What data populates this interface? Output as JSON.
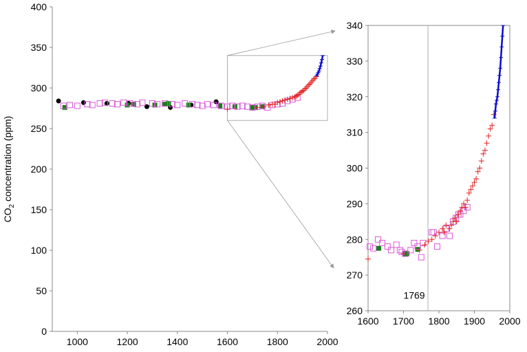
{
  "chart_data": [
    {
      "type": "scatter",
      "panel": "main",
      "ylabel_main": "CO",
      "ylabel_sub": "2",
      "ylabel_rest": " concentration (ppm)",
      "xlim": [
        900,
        2000
      ],
      "ylim": [
        0,
        400
      ],
      "xticks": [
        1000,
        1200,
        1400,
        1600,
        1800,
        2000
      ],
      "yticks": [
        0,
        50,
        100,
        150,
        200,
        250,
        300,
        350,
        400
      ],
      "grid": false,
      "zoom_box": {
        "x": [
          1600,
          2000
        ],
        "y": [
          260,
          340
        ]
      },
      "series": [
        {
          "marker": "circle",
          "color": "#000000",
          "x": [
            925,
            1025,
            1118,
            1205,
            1278,
            1372,
            1455,
            1555
          ],
          "y": [
            284,
            282,
            281,
            281,
            277,
            276,
            279,
            283
          ]
        },
        {
          "marker": "filled-square",
          "color": "#138013",
          "x": [
            950,
            1200,
            1225,
            1310,
            1350,
            1365,
            1445,
            1570,
            1630,
            1700,
            1710,
            1740
          ],
          "y": [
            276,
            279,
            280,
            279,
            280,
            281,
            279,
            278,
            277,
            276,
            276,
            277
          ]
        },
        {
          "marker": "open-square",
          "color": "#d957d9",
          "x": [
            945,
            970,
            1000,
            1040,
            1060,
            1090,
            1110,
            1140,
            1160,
            1185,
            1210,
            1240,
            1260,
            1300,
            1320,
            1350,
            1380,
            1400,
            1430,
            1460,
            1480,
            1500,
            1520,
            1545,
            1575,
            1600,
            1620,
            1640,
            1660,
            1680,
            1700,
            1720,
            1740,
            1760,
            1780,
            1800,
            1820,
            1840,
            1860,
            1880
          ],
          "y": [
            278,
            279,
            278,
            280,
            279,
            281,
            282,
            281,
            280,
            282,
            281,
            280,
            282,
            281,
            280,
            281,
            280,
            279,
            281,
            280,
            279,
            278,
            280,
            279,
            278,
            277,
            278,
            277,
            278,
            277,
            276,
            277,
            278,
            276,
            279,
            280,
            281,
            284,
            286,
            288
          ]
        },
        {
          "marker": "plus",
          "color": "#e02020",
          "x": [
            1600,
            1720,
            1745,
            1765,
            1780,
            1790,
            1800,
            1810,
            1820,
            1830,
            1840,
            1850,
            1860,
            1870,
            1875,
            1880,
            1885,
            1890,
            1895,
            1900,
            1905,
            1910,
            1915,
            1920,
            1925,
            1930,
            1935,
            1940,
            1945,
            1950,
            1955
          ],
          "y": [
            274,
            276,
            277,
            279,
            280,
            280,
            282,
            283,
            284,
            285,
            286,
            287,
            288,
            289,
            290,
            291,
            292,
            294,
            295,
            296,
            297,
            299,
            300,
            302,
            304,
            305,
            307,
            309,
            311,
            312,
            314
          ]
        },
        {
          "marker": "line",
          "color": "#0a0ad0",
          "x": [
            1957,
            1960,
            1963,
            1966,
            1969,
            1972,
            1975,
            1978,
            1981
          ],
          "y": [
            315,
            317,
            319,
            321,
            324,
            327,
            331,
            335,
            340
          ]
        }
      ]
    },
    {
      "type": "scatter",
      "panel": "inset",
      "xlim": [
        1600,
        2000
      ],
      "ylim": [
        260,
        340
      ],
      "xticks": [
        1600,
        1700,
        1800,
        1900,
        2000
      ],
      "yticks": [
        260,
        270,
        280,
        290,
        300,
        310,
        320,
        330,
        340
      ],
      "vline_x": 1769,
      "annotation": "1769",
      "grid": false,
      "series": [
        {
          "marker": "filled-square",
          "color": "#138013",
          "x": [
            1630,
            1705,
            1710,
            1740
          ],
          "y": [
            277.5,
            276,
            276,
            277.2
          ]
        },
        {
          "marker": "open-square",
          "color": "#d957d9",
          "x": [
            1605,
            1615,
            1628,
            1640,
            1655,
            1665,
            1680,
            1690,
            1695,
            1705,
            1720,
            1730,
            1740,
            1750,
            1755,
            1780,
            1785,
            1795,
            1810,
            1820,
            1830,
            1840,
            1848,
            1855,
            1860,
            1870,
            1880
          ],
          "y": [
            278,
            277.5,
            280,
            279,
            278,
            277,
            278.5,
            277,
            276.5,
            276,
            277,
            279,
            278,
            275,
            279,
            282,
            282,
            278,
            281,
            283,
            281,
            285,
            286,
            287,
            287,
            288,
            289
          ]
        },
        {
          "marker": "plus",
          "color": "#e02020",
          "x": [
            1600,
            1700,
            1745,
            1760,
            1770,
            1780,
            1790,
            1800,
            1810,
            1815,
            1820,
            1830,
            1835,
            1840,
            1845,
            1850,
            1855,
            1860,
            1865,
            1870,
            1875,
            1880,
            1885,
            1890,
            1895,
            1900,
            1905,
            1910,
            1915,
            1920,
            1925,
            1930,
            1935,
            1940,
            1945,
            1950,
            1955
          ],
          "y": [
            274.5,
            276,
            277,
            278.5,
            279.5,
            280,
            281,
            282,
            283,
            282,
            284,
            283,
            284,
            285,
            286,
            285,
            287,
            288,
            289,
            290,
            289,
            291,
            293,
            294,
            295,
            296,
            297,
            299,
            300,
            302,
            304,
            305,
            307,
            309,
            311,
            312,
            315
          ]
        },
        {
          "marker": "line",
          "color": "#0a0ad0",
          "x": [
            1957,
            1959,
            1961,
            1963,
            1965,
            1967,
            1969,
            1971,
            1973,
            1975,
            1977,
            1979,
            1981
          ],
          "y": [
            314,
            316,
            318,
            319,
            320,
            322,
            324,
            326,
            328,
            331,
            334,
            337,
            340
          ]
        }
      ]
    }
  ]
}
